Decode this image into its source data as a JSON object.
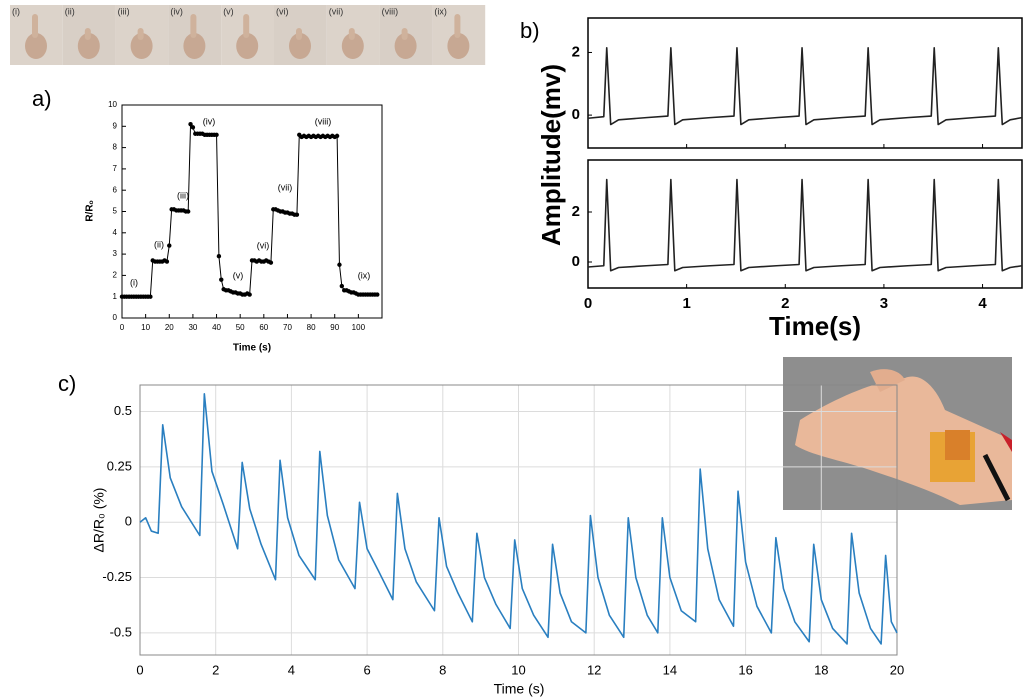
{
  "photo_strip": {
    "labels": [
      "(i)",
      "(ii)",
      "(iii)",
      "(iv)",
      "(v)",
      "(vi)",
      "(vii)",
      "(viii)",
      "(ix)"
    ]
  },
  "chart_data": [
    {
      "type": "line",
      "panel_label": "a)",
      "xlabel": "Time (s)",
      "ylabel": "R/Rₒ",
      "color": "#000000",
      "markers": true,
      "grid": false,
      "xlim": [
        0,
        110
      ],
      "ylim": [
        0,
        10
      ],
      "xticks": [
        0,
        10,
        20,
        30,
        40,
        50,
        60,
        70,
        80,
        90,
        100
      ],
      "yticks": [
        0,
        1,
        2,
        3,
        4,
        5,
        6,
        7,
        8,
        9,
        10
      ],
      "annotations": [
        "(i)",
        "(ii)",
        "(iii)",
        "(iv)",
        "(v)",
        "(vi)",
        "(vii)",
        "(viii)",
        "(ix)"
      ],
      "x": [
        0,
        1,
        2,
        3,
        4,
        5,
        6,
        7,
        8,
        9,
        10,
        11,
        12,
        13,
        14,
        15,
        16,
        17,
        18,
        19,
        20,
        21,
        22,
        23,
        24,
        25,
        26,
        27,
        28,
        29,
        30,
        31,
        32,
        33,
        34,
        35,
        36,
        37,
        38,
        39,
        40,
        41,
        42,
        43,
        44,
        45,
        46,
        47,
        48,
        49,
        50,
        51,
        52,
        53,
        54,
        55,
        56,
        57,
        58,
        59,
        60,
        61,
        62,
        63,
        64,
        65,
        66,
        67,
        68,
        69,
        70,
        71,
        72,
        73,
        74,
        75,
        76,
        77,
        78,
        79,
        80,
        81,
        82,
        83,
        84,
        85,
        86,
        87,
        88,
        89,
        90,
        91,
        92,
        93,
        94,
        95,
        96,
        97,
        98,
        99,
        100,
        101,
        102,
        103,
        104,
        105,
        106,
        107,
        108
      ],
      "values": [
        1.0,
        1.0,
        1.0,
        1.0,
        1.0,
        1.0,
        1.0,
        1.0,
        1.0,
        1.0,
        1.0,
        1.0,
        1.0,
        2.7,
        2.65,
        2.65,
        2.65,
        2.65,
        2.7,
        2.65,
        3.4,
        5.1,
        5.1,
        5.05,
        5.05,
        5.05,
        5.05,
        5.0,
        5.0,
        9.1,
        8.95,
        8.65,
        8.65,
        8.65,
        8.65,
        8.6,
        8.6,
        8.6,
        8.6,
        8.6,
        8.6,
        2.9,
        1.8,
        1.35,
        1.3,
        1.3,
        1.25,
        1.2,
        1.2,
        1.15,
        1.15,
        1.1,
        1.1,
        1.15,
        1.1,
        2.7,
        2.7,
        2.65,
        2.7,
        2.65,
        2.65,
        2.7,
        2.65,
        2.6,
        5.1,
        5.1,
        5.05,
        5.0,
        5.0,
        4.95,
        4.95,
        4.9,
        4.9,
        4.85,
        4.85,
        8.6,
        8.5,
        8.55,
        8.5,
        8.55,
        8.5,
        8.55,
        8.5,
        8.55,
        8.5,
        8.55,
        8.5,
        8.55,
        8.5,
        8.55,
        8.5,
        8.55,
        2.5,
        1.5,
        1.3,
        1.3,
        1.25,
        1.2,
        1.2,
        1.15,
        1.1,
        1.1,
        1.1,
        1.1,
        1.1,
        1.1,
        1.1,
        1.1,
        1.1
      ]
    },
    {
      "type": "line",
      "panel_label": "b)",
      "xlabel": "Time(s)",
      "ylabel": "Amplitude(mv)",
      "color": "#222222",
      "grid": false,
      "xlim": [
        0,
        4.4
      ],
      "xticks": [
        0,
        1,
        2,
        3,
        4
      ],
      "x": [
        0,
        0.16,
        0.19,
        0.23,
        0.31,
        0.59,
        0.81,
        0.84,
        0.88,
        0.96,
        1.24,
        1.48,
        1.51,
        1.55,
        1.63,
        1.91,
        2.14,
        2.17,
        2.21,
        2.29,
        2.57,
        2.81,
        2.84,
        2.88,
        2.96,
        3.24,
        3.48,
        3.51,
        3.55,
        3.63,
        3.91,
        4.13,
        4.16,
        4.2,
        4.28,
        4.4
      ],
      "series": [
        {
          "ylim": [
            -1.05,
            3.1
          ],
          "yticks": [
            0,
            2
          ],
          "values": [
            -0.1,
            -0.05,
            2.15,
            -0.3,
            -0.15,
            -0.08,
            -0.03,
            2.15,
            -0.3,
            -0.15,
            -0.08,
            -0.03,
            2.15,
            -0.3,
            -0.15,
            -0.08,
            -0.03,
            2.15,
            -0.3,
            -0.15,
            -0.08,
            -0.03,
            2.15,
            -0.3,
            -0.15,
            -0.08,
            -0.03,
            2.15,
            -0.3,
            -0.15,
            -0.08,
            -0.03,
            2.15,
            -0.3,
            -0.15,
            -0.08
          ]
        },
        {
          "ylim": [
            -1.04,
            4.08
          ],
          "yticks": [
            0,
            2
          ],
          "values": [
            -0.2,
            -0.15,
            3.3,
            -0.35,
            -0.22,
            -0.15,
            -0.1,
            3.3,
            -0.35,
            -0.22,
            -0.15,
            -0.1,
            3.3,
            -0.35,
            -0.22,
            -0.15,
            -0.1,
            3.3,
            -0.35,
            -0.22,
            -0.15,
            -0.1,
            3.3,
            -0.35,
            -0.22,
            -0.15,
            -0.1,
            3.3,
            -0.35,
            -0.22,
            -0.15,
            -0.1,
            3.3,
            -0.35,
            -0.22,
            -0.15
          ]
        }
      ]
    },
    {
      "type": "line",
      "panel_label": "c)",
      "xlabel": "Time (s)",
      "ylabel": "ΔR/R₀ (%)",
      "color": "#2a7fc0",
      "grid": true,
      "xlim": [
        0,
        20
      ],
      "ylim": [
        -0.6,
        0.62
      ],
      "xticks": [
        0,
        2,
        4,
        6,
        8,
        10,
        12,
        14,
        16,
        18,
        20
      ],
      "yticks": [
        -0.5,
        -0.25,
        0,
        0.25,
        0.5
      ],
      "x": [
        0,
        0.15,
        0.3,
        0.48,
        0.6,
        0.8,
        1.1,
        1.58,
        1.7,
        1.9,
        2.2,
        2.58,
        2.7,
        2.9,
        3.2,
        3.58,
        3.7,
        3.9,
        4.2,
        4.63,
        4.75,
        4.95,
        5.25,
        5.68,
        5.8,
        6.0,
        6.3,
        6.68,
        6.8,
        7.0,
        7.3,
        7.78,
        7.9,
        8.1,
        8.4,
        8.78,
        8.9,
        9.1,
        9.4,
        9.78,
        9.9,
        10.1,
        10.4,
        10.78,
        10.9,
        11.1,
        11.4,
        11.78,
        11.9,
        12.1,
        12.4,
        12.78,
        12.9,
        13.1,
        13.4,
        13.68,
        13.8,
        14.0,
        14.3,
        14.68,
        14.8,
        15.0,
        15.3,
        15.68,
        15.8,
        16.0,
        16.3,
        16.68,
        16.8,
        17.0,
        17.3,
        17.68,
        17.8,
        18.0,
        18.3,
        18.68,
        18.8,
        19.0,
        19.3,
        19.58,
        19.7,
        19.85,
        20
      ],
      "values": [
        0.0,
        0.02,
        -0.04,
        -0.05,
        0.44,
        0.2,
        0.07,
        -0.06,
        0.58,
        0.23,
        0.08,
        -0.12,
        0.27,
        0.06,
        -0.1,
        -0.26,
        0.28,
        0.02,
        -0.15,
        -0.26,
        0.32,
        0.03,
        -0.17,
        -0.3,
        0.09,
        -0.12,
        -0.22,
        -0.35,
        0.13,
        -0.12,
        -0.27,
        -0.4,
        0.02,
        -0.2,
        -0.32,
        -0.45,
        -0.05,
        -0.25,
        -0.37,
        -0.48,
        -0.08,
        -0.3,
        -0.42,
        -0.52,
        -0.1,
        -0.32,
        -0.45,
        -0.5,
        0.03,
        -0.25,
        -0.42,
        -0.52,
        0.02,
        -0.25,
        -0.42,
        -0.5,
        0.02,
        -0.25,
        -0.4,
        -0.45,
        0.24,
        -0.12,
        -0.35,
        -0.47,
        0.14,
        -0.18,
        -0.38,
        -0.5,
        -0.07,
        -0.3,
        -0.45,
        -0.54,
        -0.1,
        -0.35,
        -0.48,
        -0.55,
        -0.05,
        -0.32,
        -0.48,
        -0.55,
        -0.15,
        -0.45,
        -0.5
      ]
    }
  ]
}
